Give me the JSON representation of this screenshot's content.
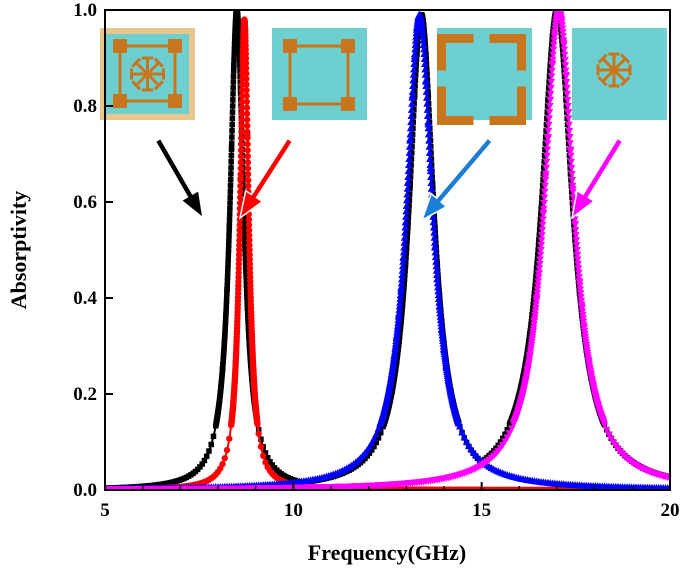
{
  "chart_data": {
    "type": "line",
    "title": "",
    "xlabel": "Frequency(GHz)",
    "ylabel": "Absorptivity",
    "xlim": [
      5,
      20
    ],
    "ylim": [
      0.0,
      1.0
    ],
    "x_ticks": [
      "5",
      "10",
      "15",
      "20"
    ],
    "y_ticks": [
      "0.0",
      "0.2",
      "0.4",
      "0.6",
      "0.8",
      "1.0"
    ],
    "grid": false,
    "series": [
      {
        "color": "#000000",
        "marker": "square",
        "peaks": [
          {
            "center": 8.5,
            "peak": 1.0,
            "hwhm": 0.22,
            "baseline": 0.0
          },
          {
            "center": 13.4,
            "peak": 0.99,
            "hwhm": 0.4,
            "baseline": 0.0
          },
          {
            "center": 17.0,
            "peak": 1.0,
            "hwhm": 0.5,
            "baseline": 0.0
          }
        ]
      },
      {
        "color": "#ff0000",
        "marker": "circle",
        "peaks": [
          {
            "center": 8.7,
            "peak": 0.98,
            "hwhm": 0.14,
            "baseline": 0.0
          }
        ]
      },
      {
        "color": "#0000ff",
        "marker": "triangle-up",
        "peaks": [
          {
            "center": 13.35,
            "peak": 0.99,
            "hwhm": 0.42,
            "baseline": 0.0
          }
        ]
      },
      {
        "color": "#ff00ff",
        "marker": "triangle-down",
        "peaks": [
          {
            "center": 17.05,
            "peak": 1.0,
            "hwhm": 0.48,
            "baseline": 0.0
          }
        ]
      }
    ],
    "insets": [
      {
        "type": "combined-resonator",
        "arrow_color": "#000000"
      },
      {
        "type": "square-loop-resonator",
        "arrow_color": "#ff0000"
      },
      {
        "type": "split-ring-resonator",
        "arrow_color": "#1a7fd4"
      },
      {
        "type": "star-resonator",
        "arrow_color": "#ff00ff"
      }
    ],
    "colors": {
      "inset_bg": "#6dcfcf",
      "inset_metal": "#c8761e",
      "inset_border": "#e9c68d"
    }
  }
}
